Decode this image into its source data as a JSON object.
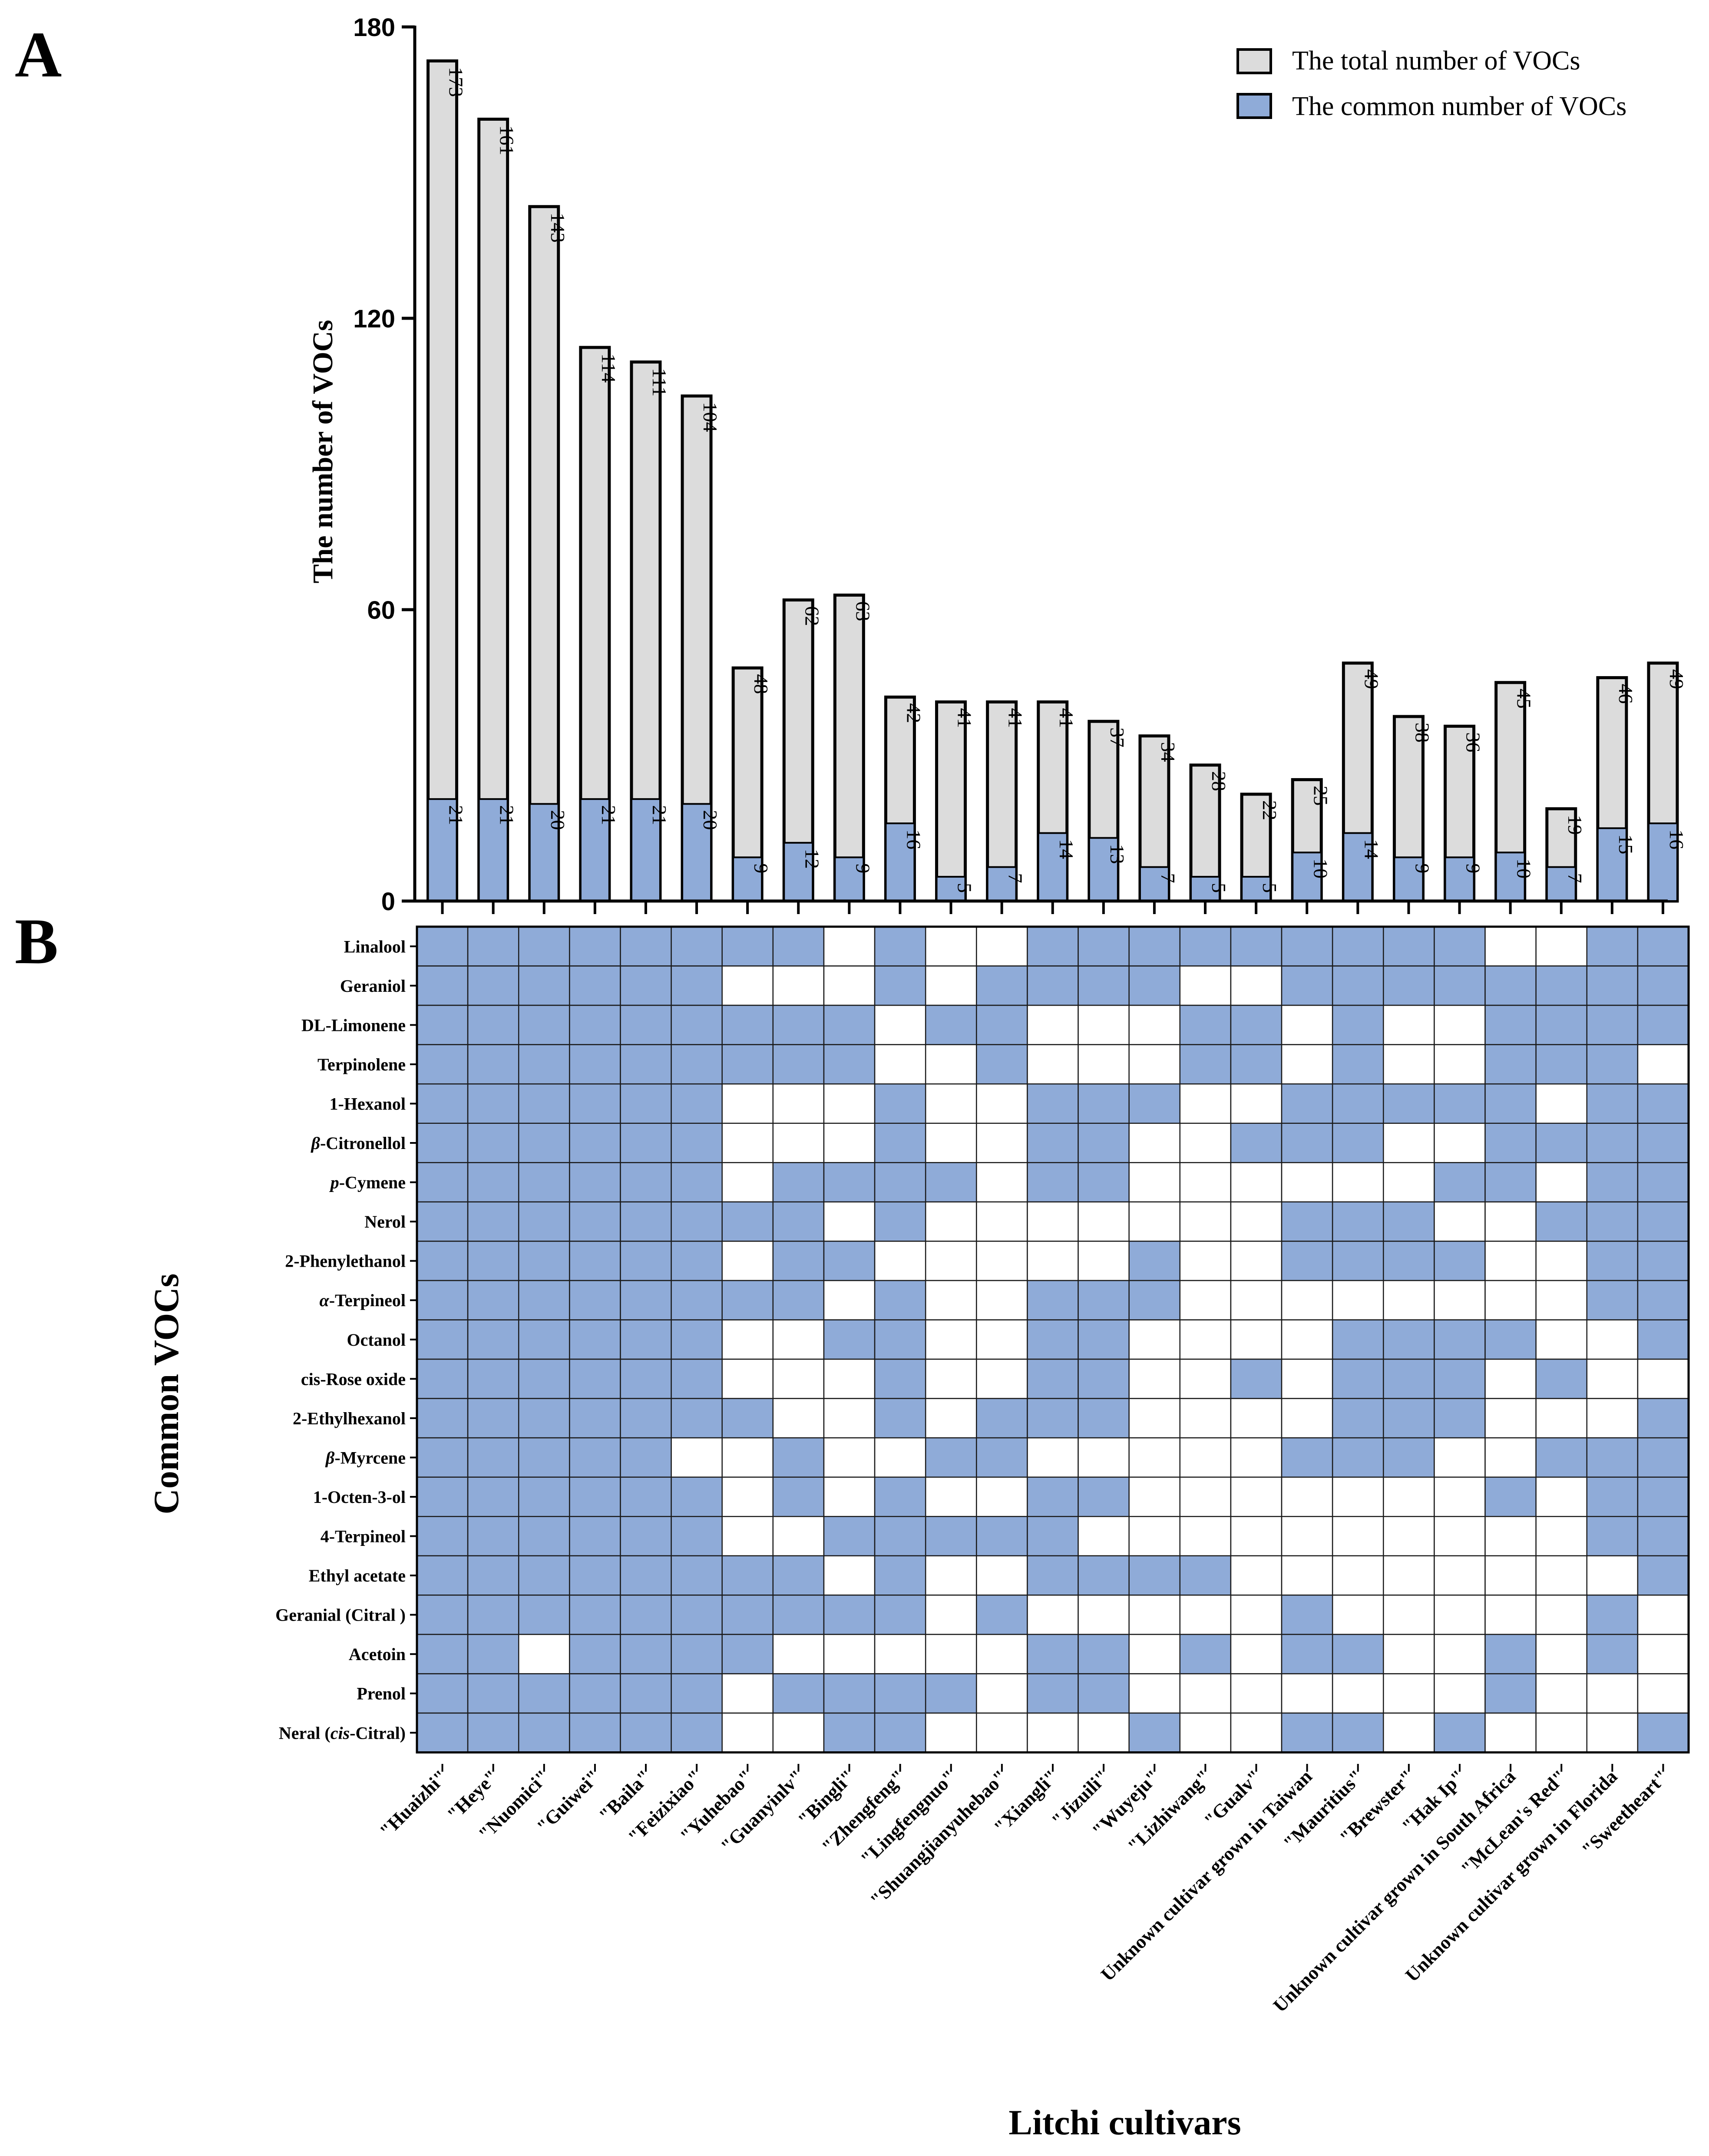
{
  "panels": {
    "a": "A",
    "b": "B"
  },
  "colors": {
    "total": "#dcdcdc",
    "common": "#8fabd8",
    "stroke": "#000000",
    "empty": "#ffffff"
  },
  "chart_data": [
    {
      "type": "bar",
      "panel": "A",
      "title": "",
      "ylabel": "The number of VOCs",
      "ylim": [
        0,
        180
      ],
      "yticks": [
        0,
        60,
        120,
        180
      ],
      "legend": {
        "position": "top-right",
        "total_label": "The total number of VOCs",
        "common_label": "The common number of  VOCs"
      },
      "categories": [
        "\"Huaizhi\"",
        "\"Heye\"",
        "\"Nuomici\"",
        "\"Guiwei\"",
        "\"Baila\"",
        "\"Feizixiao\"",
        "\"Yuhebao\"",
        "\"Guanyinlv\"",
        "\"Bingli\"",
        "\"Zhengfeng\"",
        "\"Lingfengnuo\"",
        "\"Shuangjianyuhebao\"",
        "\"Xiangli\"",
        "\"Jizuili\"",
        "\"Wuyeju\"",
        "\"Lizhiwang\"",
        "\"Gualv\"",
        "Unknown cultivar grown in Taiwan",
        "\"Mauritius\"",
        "\"Brewster\"",
        "\"Hak Ip\"",
        "Unknown cultivar grown in South Africa",
        "\"McLean's Red\"",
        "Unknown cultivar grown in Florida",
        "\"Sweetheart\""
      ],
      "series": [
        {
          "name": "The total number of VOCs",
          "values": [
            173,
            161,
            143,
            114,
            111,
            104,
            48,
            62,
            63,
            42,
            41,
            41,
            41,
            37,
            34,
            28,
            22,
            25,
            49,
            38,
            36,
            45,
            19,
            46,
            49
          ]
        },
        {
          "name": "The common number of  VOCs",
          "values": [
            21,
            21,
            20,
            21,
            21,
            20,
            9,
            12,
            9,
            16,
            5,
            7,
            14,
            13,
            7,
            5,
            5,
            10,
            14,
            9,
            9,
            10,
            7,
            15,
            16
          ]
        }
      ]
    },
    {
      "type": "heatmap",
      "panel": "B",
      "ylabel": "Common VOCs",
      "xlabel": "Litchi cultivars",
      "rows": [
        {
          "pre": "",
          "it": "",
          "post": "Linalool"
        },
        {
          "pre": "",
          "it": "",
          "post": "Geraniol"
        },
        {
          "pre": "",
          "it": "",
          "post": "DL-Limonene"
        },
        {
          "pre": "",
          "it": "",
          "post": "Terpinolene"
        },
        {
          "pre": "",
          "it": "",
          "post": "1-Hexanol"
        },
        {
          "pre": "",
          "it": "β",
          "post": "-Citronellol"
        },
        {
          "pre": "",
          "it": "p",
          "post": "-Cymene"
        },
        {
          "pre": "",
          "it": "",
          "post": "Nerol"
        },
        {
          "pre": "",
          "it": "",
          "post": "2-Phenylethanol"
        },
        {
          "pre": "",
          "it": "α",
          "post": "-Terpineol"
        },
        {
          "pre": "",
          "it": "",
          "post": "Octanol"
        },
        {
          "pre": "",
          "it": "",
          "post": "cis-Rose oxide"
        },
        {
          "pre": "",
          "it": "",
          "post": "2-Ethylhexanol"
        },
        {
          "pre": "",
          "it": "β",
          "post": "-Myrcene"
        },
        {
          "pre": "",
          "it": "",
          "post": "1-Octen-3-ol"
        },
        {
          "pre": "",
          "it": "",
          "post": "4-Terpineol"
        },
        {
          "pre": "",
          "it": "",
          "post": "Ethyl acetate"
        },
        {
          "pre": "",
          "it": "",
          "post": "Geranial (Citral )"
        },
        {
          "pre": "",
          "it": "",
          "post": "Acetoin"
        },
        {
          "pre": "",
          "it": "",
          "post": "Prenol"
        },
        {
          "pre": "Neral (",
          "it": "cis",
          "post": "-Citral)"
        }
      ],
      "matrix": [
        [
          1,
          1,
          1,
          1,
          1,
          1,
          1,
          1,
          0,
          1,
          0,
          0,
          1,
          1,
          1,
          1,
          1,
          1,
          1,
          1,
          1,
          0,
          0,
          1,
          1
        ],
        [
          1,
          1,
          1,
          1,
          1,
          1,
          0,
          0,
          0,
          1,
          0,
          1,
          1,
          1,
          1,
          0,
          0,
          1,
          1,
          1,
          1,
          1,
          1,
          1,
          1
        ],
        [
          1,
          1,
          1,
          1,
          1,
          1,
          1,
          1,
          1,
          0,
          1,
          1,
          0,
          0,
          0,
          1,
          1,
          0,
          1,
          0,
          0,
          1,
          1,
          1,
          1
        ],
        [
          1,
          1,
          1,
          1,
          1,
          1,
          1,
          1,
          1,
          0,
          0,
          1,
          0,
          0,
          0,
          1,
          1,
          0,
          1,
          0,
          0,
          1,
          1,
          1,
          0
        ],
        [
          1,
          1,
          1,
          1,
          1,
          1,
          0,
          0,
          0,
          1,
          0,
          0,
          1,
          1,
          1,
          0,
          0,
          1,
          1,
          1,
          1,
          1,
          0,
          1,
          1
        ],
        [
          1,
          1,
          1,
          1,
          1,
          1,
          0,
          0,
          0,
          1,
          0,
          0,
          1,
          1,
          0,
          0,
          1,
          1,
          1,
          0,
          0,
          1,
          1,
          1,
          1
        ],
        [
          1,
          1,
          1,
          1,
          1,
          1,
          0,
          1,
          1,
          1,
          1,
          0,
          1,
          1,
          0,
          0,
          0,
          0,
          0,
          0,
          1,
          1,
          0,
          1,
          1
        ],
        [
          1,
          1,
          1,
          1,
          1,
          1,
          1,
          1,
          0,
          1,
          0,
          0,
          0,
          0,
          0,
          0,
          0,
          1,
          1,
          1,
          0,
          0,
          1,
          1,
          1
        ],
        [
          1,
          1,
          1,
          1,
          1,
          1,
          0,
          1,
          1,
          0,
          0,
          0,
          0,
          0,
          1,
          0,
          0,
          1,
          1,
          1,
          1,
          0,
          0,
          1,
          1
        ],
        [
          1,
          1,
          1,
          1,
          1,
          1,
          1,
          1,
          0,
          1,
          0,
          0,
          1,
          1,
          1,
          0,
          0,
          0,
          0,
          0,
          0,
          0,
          0,
          1,
          1
        ],
        [
          1,
          1,
          1,
          1,
          1,
          1,
          0,
          0,
          1,
          1,
          0,
          0,
          1,
          1,
          0,
          0,
          0,
          0,
          1,
          1,
          1,
          1,
          0,
          0,
          1
        ],
        [
          1,
          1,
          1,
          1,
          1,
          1,
          0,
          0,
          0,
          1,
          0,
          0,
          1,
          1,
          0,
          0,
          1,
          0,
          1,
          1,
          1,
          0,
          1,
          0,
          0
        ],
        [
          1,
          1,
          1,
          1,
          1,
          1,
          1,
          0,
          0,
          1,
          0,
          1,
          1,
          1,
          0,
          0,
          0,
          0,
          1,
          1,
          1,
          0,
          0,
          0,
          1
        ],
        [
          1,
          1,
          1,
          1,
          1,
          0,
          0,
          1,
          0,
          0,
          1,
          1,
          0,
          0,
          0,
          0,
          0,
          1,
          1,
          1,
          0,
          0,
          1,
          1,
          1
        ],
        [
          1,
          1,
          1,
          1,
          1,
          1,
          0,
          1,
          0,
          1,
          0,
          0,
          1,
          1,
          0,
          0,
          0,
          0,
          0,
          0,
          0,
          1,
          0,
          1,
          1
        ],
        [
          1,
          1,
          1,
          1,
          1,
          1,
          0,
          0,
          1,
          1,
          1,
          1,
          1,
          0,
          0,
          0,
          0,
          0,
          0,
          0,
          0,
          0,
          0,
          1,
          1
        ],
        [
          1,
          1,
          1,
          1,
          1,
          1,
          1,
          1,
          0,
          1,
          0,
          0,
          1,
          1,
          1,
          1,
          0,
          0,
          0,
          0,
          0,
          0,
          0,
          0,
          1
        ],
        [
          1,
          1,
          1,
          1,
          1,
          1,
          1,
          1,
          1,
          1,
          0,
          1,
          0,
          0,
          0,
          0,
          0,
          1,
          0,
          0,
          0,
          0,
          0,
          1,
          0
        ],
        [
          1,
          1,
          0,
          1,
          1,
          1,
          1,
          0,
          0,
          0,
          0,
          0,
          1,
          1,
          0,
          1,
          0,
          1,
          1,
          0,
          0,
          1,
          0,
          1,
          0
        ],
        [
          1,
          1,
          1,
          1,
          1,
          1,
          0,
          1,
          1,
          1,
          1,
          0,
          1,
          1,
          0,
          0,
          0,
          0,
          0,
          0,
          0,
          1,
          0,
          0,
          0
        ],
        [
          1,
          1,
          1,
          1,
          1,
          1,
          0,
          0,
          1,
          1,
          0,
          0,
          0,
          0,
          1,
          0,
          0,
          1,
          1,
          0,
          1,
          0,
          0,
          0,
          1
        ]
      ]
    }
  ]
}
